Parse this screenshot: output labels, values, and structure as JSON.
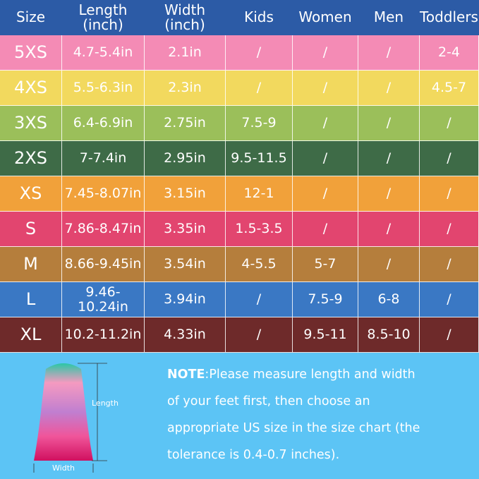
{
  "table": {
    "header": [
      "Size",
      "Length\n(inch)",
      "Width\n(inch)",
      "Kids",
      "Women",
      "Men",
      "Toddlers"
    ],
    "rows": [
      [
        "5XS",
        "4.7-5.4in",
        "2.1in",
        "/",
        "/",
        "/",
        "2-4"
      ],
      [
        "4XS",
        "5.5-6.3in",
        "2.3in",
        "/",
        "/",
        "/",
        "4.5-7"
      ],
      [
        "3XS",
        "6.4-6.9in",
        "2.75in",
        "7.5-9",
        "/",
        "/",
        "/"
      ],
      [
        "2XS",
        "7-7.4in",
        "2.95in",
        "9.5-11.5",
        "/",
        "/",
        "/"
      ],
      [
        "XS",
        "7.45-8.07in",
        "3.15in",
        "12-1",
        "/",
        "/",
        "/"
      ],
      [
        "S",
        "7.86-8.47in",
        "3.35in",
        "1.5-3.5",
        "/",
        "/",
        "/"
      ],
      [
        "M",
        "8.66-9.45in",
        "3.54in",
        "4-5.5",
        "5-7",
        "/",
        "/"
      ],
      [
        "L",
        "9.46-10.24in",
        "3.94in",
        "/",
        "7.5-9",
        "6-8",
        "/"
      ],
      [
        "XL",
        "10.2-11.2in",
        "4.33in",
        "/",
        "9.5-11",
        "8.5-10",
        "/"
      ]
    ]
  },
  "diagram": {
    "length_label": "Length",
    "width_label": "Width"
  },
  "note": {
    "label": "NOTE",
    "text": ":Please measure length and width of your feet first, then choose an appropriate US size in the size chart (the tolerance is 0.4-0.7 inches)."
  }
}
